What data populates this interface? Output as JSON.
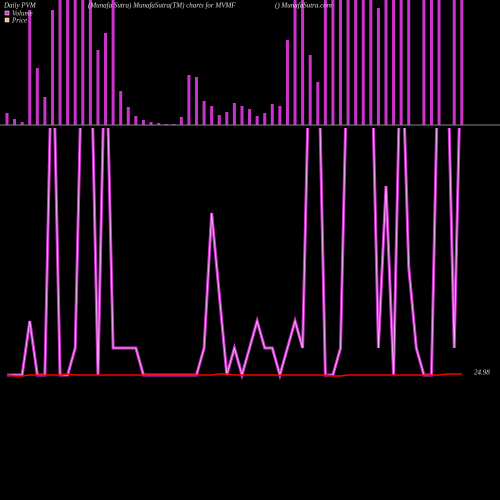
{
  "chart_data": {
    "type": "bar",
    "title": "Daily PVM",
    "subtitle": "(Munafa Sutra) MunafaSutra(TM) charts for MVMF",
    "source": "() MunafaSutra.com",
    "price_label": "24.98",
    "series": [
      {
        "name": "Volume",
        "color": "#cc33cc",
        "values": [
          12,
          6,
          3,
          115,
          57,
          28,
          115,
          200,
          200,
          200,
          200,
          200,
          75,
          92,
          200,
          34,
          18,
          9,
          5,
          3,
          2,
          1,
          1,
          8,
          50,
          48,
          24,
          19,
          10,
          13,
          22,
          19,
          16,
          9,
          12,
          21,
          19,
          85,
          200,
          200,
          70,
          43,
          200,
          200,
          200,
          200,
          200,
          200,
          200,
          117,
          200,
          200,
          200,
          200,
          0,
          200,
          200,
          200,
          0,
          200,
          200
        ]
      },
      {
        "name": "Price",
        "color": "#ff0000",
        "values": [
          24.98,
          24.97,
          24.97,
          24.98,
          24.98,
          24.98,
          24.98,
          24.98,
          24.99,
          24.98,
          24.98,
          24.98,
          24.98,
          24.98,
          24.98,
          24.98,
          24.98,
          24.98,
          24.98,
          24.98,
          24.98,
          24.98,
          24.98,
          24.98,
          24.98,
          24.98,
          24.98,
          24.98,
          24.99,
          24.99,
          24.98,
          24.98,
          24.98,
          24.98,
          24.98,
          24.98,
          24.98,
          24.98,
          24.98,
          24.98,
          24.98,
          24.98,
          24.98,
          24.97,
          24.97,
          24.98,
          24.98,
          24.98,
          24.98,
          24.98,
          24.98,
          24.98,
          24.98,
          24.98,
          24.98,
          24.98,
          24.98,
          24.98,
          24.99,
          24.99,
          24.99
        ]
      }
    ],
    "volume_line": [
      0,
      0,
      0,
      60,
      0,
      0,
      400,
      0,
      0,
      30,
      400,
      400,
      0,
      400,
      30,
      30,
      30,
      30,
      0,
      0,
      0,
      0,
      0,
      0,
      0,
      0,
      30,
      180,
      90,
      0,
      30,
      0,
      30,
      60,
      30,
      30,
      0,
      30,
      60,
      30,
      400,
      400,
      0,
      0,
      30,
      400,
      400,
      400,
      400,
      30,
      210,
      0,
      400,
      120,
      30,
      0,
      0,
      400,
      400,
      30,
      400
    ]
  }
}
